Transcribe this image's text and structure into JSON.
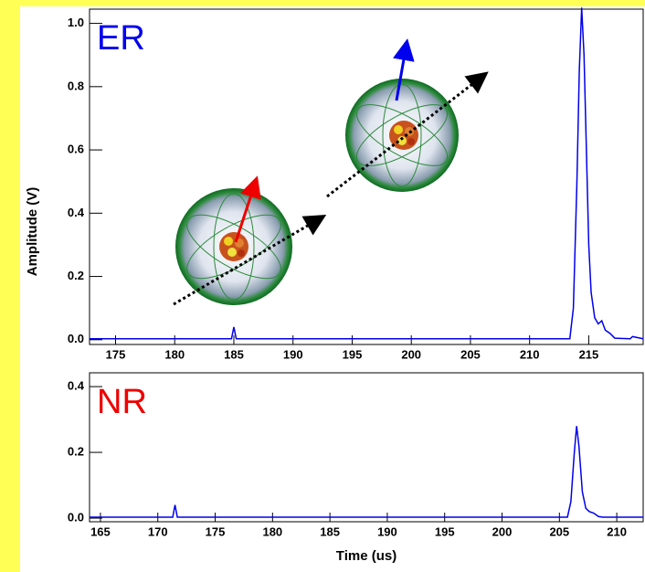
{
  "chart_data": [
    {
      "type": "line",
      "annotation": "ER",
      "annotation_color": "#0000ee",
      "ylabel": "Amplitude (V)",
      "xlim": [
        172.8,
        219.6
      ],
      "ylim": [
        -0.015,
        1.045
      ],
      "xticks": [
        175,
        180,
        185,
        190,
        195,
        200,
        205,
        210,
        215
      ],
      "yticks": [
        {
          "value": 0,
          "label": "0.0"
        },
        0.2,
        0.4,
        0.6,
        0.8,
        {
          "value": 1,
          "label": "1.0"
        }
      ],
      "series": [
        {
          "color": "#0000ee",
          "x": [
            172.8,
            184.8,
            185.0,
            185.2,
            213.4,
            213.7,
            214.0,
            214.2,
            214.4,
            214.6,
            214.8,
            215.0,
            215.2,
            215.5,
            215.8,
            216.1,
            216.4,
            216.8,
            217.2,
            218.5,
            218.7,
            219.6
          ],
          "values": [
            0.003,
            0.003,
            0.04,
            0.003,
            0.003,
            0.1,
            0.5,
            0.85,
            1.05,
            0.9,
            0.6,
            0.3,
            0.15,
            0.07,
            0.05,
            0.06,
            0.03,
            0.02,
            0.005,
            0.003,
            0.01,
            0.003
          ]
        }
      ]
    },
    {
      "type": "line",
      "annotation": "NR",
      "annotation_color": "#ee0000",
      "xlabel": "Time (us)",
      "xlim": [
        164.05,
        212.3
      ],
      "ylim": [
        -0.011,
        0.442
      ],
      "xticks": [
        165,
        170,
        175,
        180,
        185,
        190,
        195,
        200,
        205,
        210
      ],
      "yticks": [
        {
          "value": 0,
          "label": "0.0"
        },
        0.2,
        0.4
      ],
      "series": [
        {
          "color": "#0000ee",
          "x": [
            164.05,
            171.3,
            171.5,
            171.7,
            205.7,
            206.0,
            206.3,
            206.5,
            206.7,
            207.0,
            207.3,
            207.6,
            208.0,
            208.4,
            208.8,
            212.3
          ],
          "values": [
            0.003,
            0.003,
            0.04,
            0.003,
            0.003,
            0.05,
            0.2,
            0.28,
            0.22,
            0.08,
            0.03,
            0.02,
            0.015,
            0.005,
            0.003,
            0.003
          ]
        }
      ]
    }
  ]
}
